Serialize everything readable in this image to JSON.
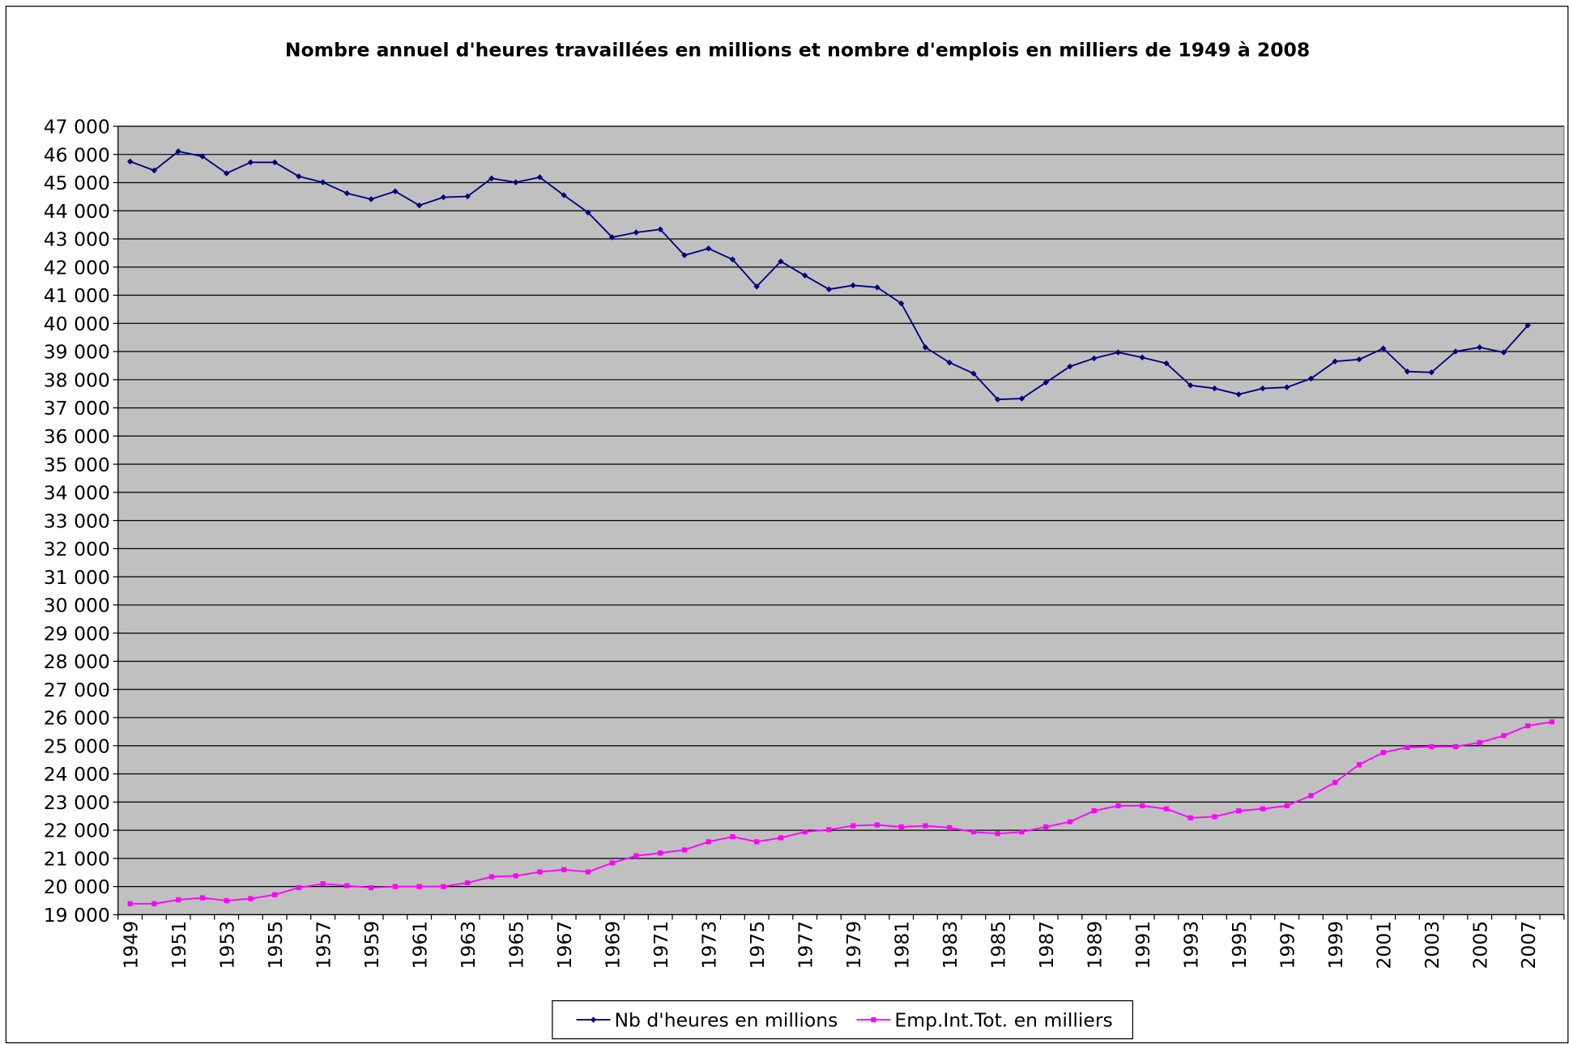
{
  "chart_data": {
    "type": "line",
    "title": "Nombre annuel d'heures travaillées en millions et nombre d'emplois en milliers de 1949 à 2008",
    "categories": [
      "1949",
      null,
      "1951",
      null,
      "1953",
      null,
      "1955",
      null,
      "1957",
      null,
      "1959",
      null,
      "1961",
      null,
      "1963",
      null,
      "1965",
      null,
      "1967",
      null,
      "1969",
      null,
      "1971",
      null,
      "1973",
      null,
      "1975",
      null,
      "1977",
      null,
      "1979",
      null,
      "1981",
      null,
      "1983",
      null,
      "1985",
      null,
      "1987",
      null,
      "1989",
      null,
      "1991",
      null,
      "1993",
      null,
      "1995",
      null,
      "1997",
      null,
      "1999",
      null,
      "2001",
      null,
      "2003",
      null,
      "2005",
      null,
      "2007",
      null
    ],
    "series": [
      {
        "name": "Nb d'heures en millions",
        "color": "#000080",
        "marker": "diamond",
        "values": [
          45750,
          45430,
          46110,
          45930,
          45330,
          45720,
          45720,
          45220,
          45010,
          44620,
          44410,
          44690,
          44190,
          44480,
          44510,
          45150,
          45010,
          45190,
          44550,
          43940,
          43060,
          43230,
          43340,
          42420,
          42660,
          42270,
          41310,
          42200,
          41700,
          41210,
          41350,
          41280,
          40710,
          39150,
          38610,
          38220,
          37300,
          37330,
          37900,
          38470,
          38760,
          38970,
          38790,
          38580,
          37800,
          37690,
          37480,
          37690,
          37730,
          38040,
          38650,
          38720,
          39110,
          38290,
          38260,
          39000,
          39150,
          38970,
          39930,
          null
        ]
      },
      {
        "name": "Emp.Int.Tot. en milliers",
        "color": "#ff00ff",
        "marker": "square",
        "values": [
          19390,
          19390,
          19530,
          19600,
          19500,
          19570,
          19710,
          19960,
          20100,
          20030,
          19960,
          20000,
          20000,
          20000,
          20130,
          20350,
          20380,
          20520,
          20600,
          20520,
          20840,
          21090,
          21190,
          21300,
          21590,
          21770,
          21590,
          21730,
          21940,
          22020,
          22160,
          22190,
          22120,
          22160,
          22090,
          21940,
          21880,
          21940,
          22120,
          22300,
          22690,
          22870,
          22870,
          22760,
          22440,
          22480,
          22690,
          22760,
          22870,
          23230,
          23700,
          24330,
          24760,
          24940,
          24970,
          24970,
          25110,
          25360,
          25710,
          25850
        ]
      }
    ],
    "ylim": [
      19000,
      47000
    ],
    "yticks": [
      {
        "value": 19000,
        "label": "19 000"
      },
      {
        "value": 20000,
        "label": "20 000"
      },
      {
        "value": 21000,
        "label": "21 000"
      },
      {
        "value": 22000,
        "label": "22 000"
      },
      {
        "value": 23000,
        "label": "23 000"
      },
      {
        "value": 24000,
        "label": "24 000"
      },
      {
        "value": 25000,
        "label": "25 000"
      },
      {
        "value": 26000,
        "label": "26 000"
      },
      {
        "value": 27000,
        "label": "27 000"
      },
      {
        "value": 28000,
        "label": "28 000"
      },
      {
        "value": 29000,
        "label": "29 000"
      },
      {
        "value": 30000,
        "label": "30 000"
      },
      {
        "value": 31000,
        "label": "31 000"
      },
      {
        "value": 32000,
        "label": "32 000"
      },
      {
        "value": 33000,
        "label": "33 000"
      },
      {
        "value": 34000,
        "label": "34 000"
      },
      {
        "value": 35000,
        "label": "35 000"
      },
      {
        "value": 36000,
        "label": "36 000"
      },
      {
        "value": 37000,
        "label": "37 000"
      },
      {
        "value": 38000,
        "label": "38 000"
      },
      {
        "value": 39000,
        "label": "39 000"
      },
      {
        "value": 40000,
        "label": "40 000"
      },
      {
        "value": 41000,
        "label": "41 000"
      },
      {
        "value": 42000,
        "label": "42 000"
      },
      {
        "value": 43000,
        "label": "43 000"
      },
      {
        "value": 44000,
        "label": "44 000"
      },
      {
        "value": 45000,
        "label": "45 000"
      },
      {
        "value": 46000,
        "label": "46 000"
      },
      {
        "value": 47000,
        "label": "47 000"
      }
    ],
    "grid": true,
    "plot_background": "#c0c0c0",
    "legend": "bottom"
  }
}
